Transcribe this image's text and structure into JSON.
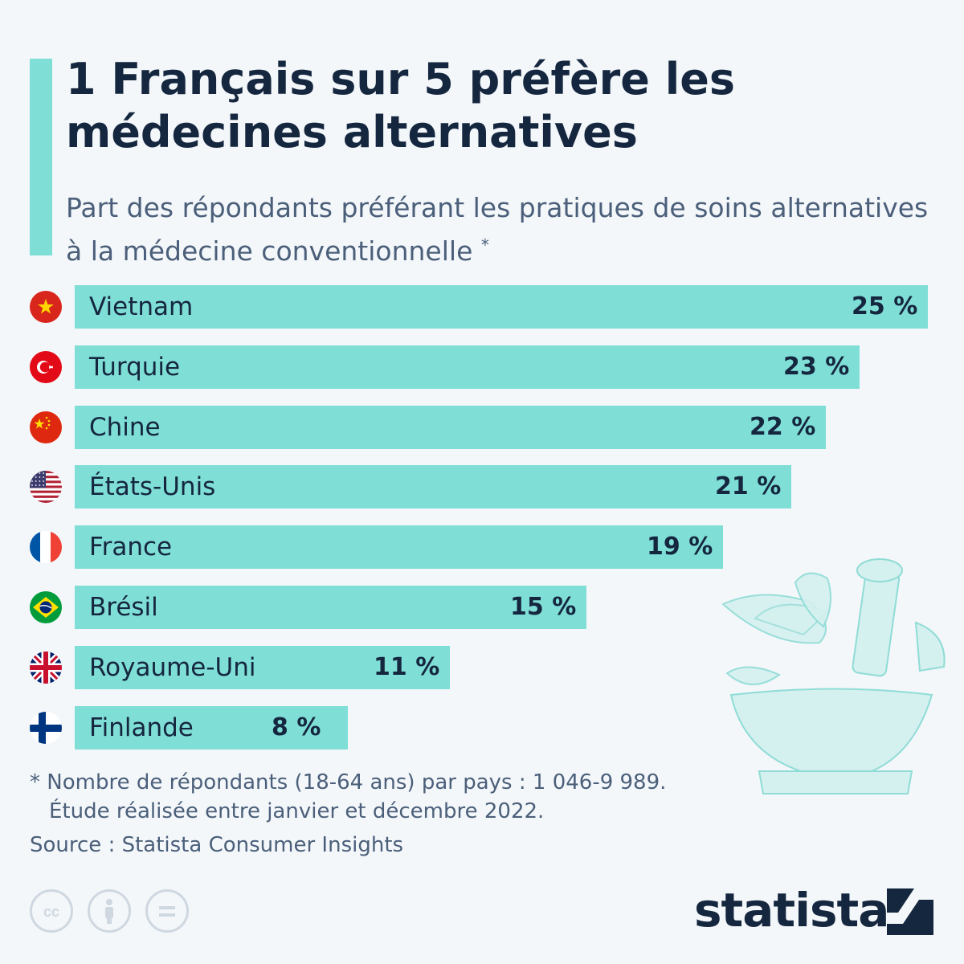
{
  "title": "1 Français sur 5 préfère les médecines alternatives",
  "subtitle": "Part des répondants préférant les pratiques de soins alternatives à la médecine conventionnelle",
  "subtitle_marker": "*",
  "footnote": {
    "line1": "* Nombre de répondants (18-64 ans) par pays : 1 046-9 989.",
    "line2": "Étude réalisée entre janvier et décembre 2022."
  },
  "source": "Source : Statista Consumer Insights",
  "brand": "statista",
  "license_icons": [
    "cc-icon",
    "attribution-icon",
    "no-derivatives-icon"
  ],
  "colors": {
    "bar": "#7fded6",
    "accent": "#7fded6",
    "text": "#15263f",
    "background": "#f3f7fa"
  },
  "chart_data": {
    "type": "bar",
    "orientation": "horizontal",
    "unit": "%",
    "categories": [
      "Vietnam",
      "Turquie",
      "Chine",
      "États-Unis",
      "France",
      "Brésil",
      "Royaume-Uni",
      "Finlande"
    ],
    "values": [
      25,
      23,
      22,
      21,
      19,
      15,
      11,
      8
    ],
    "labels": [
      "25 %",
      "23 %",
      "22 %",
      "21 %",
      "19 %",
      "15 %",
      "11 %",
      "8 %"
    ],
    "flags": [
      "vietnam-flag-icon",
      "turkey-flag-icon",
      "china-flag-icon",
      "usa-flag-icon",
      "france-flag-icon",
      "brazil-flag-icon",
      "uk-flag-icon",
      "finland-flag-icon"
    ],
    "xlim": [
      0,
      25
    ],
    "grid": false,
    "legend": "none"
  }
}
